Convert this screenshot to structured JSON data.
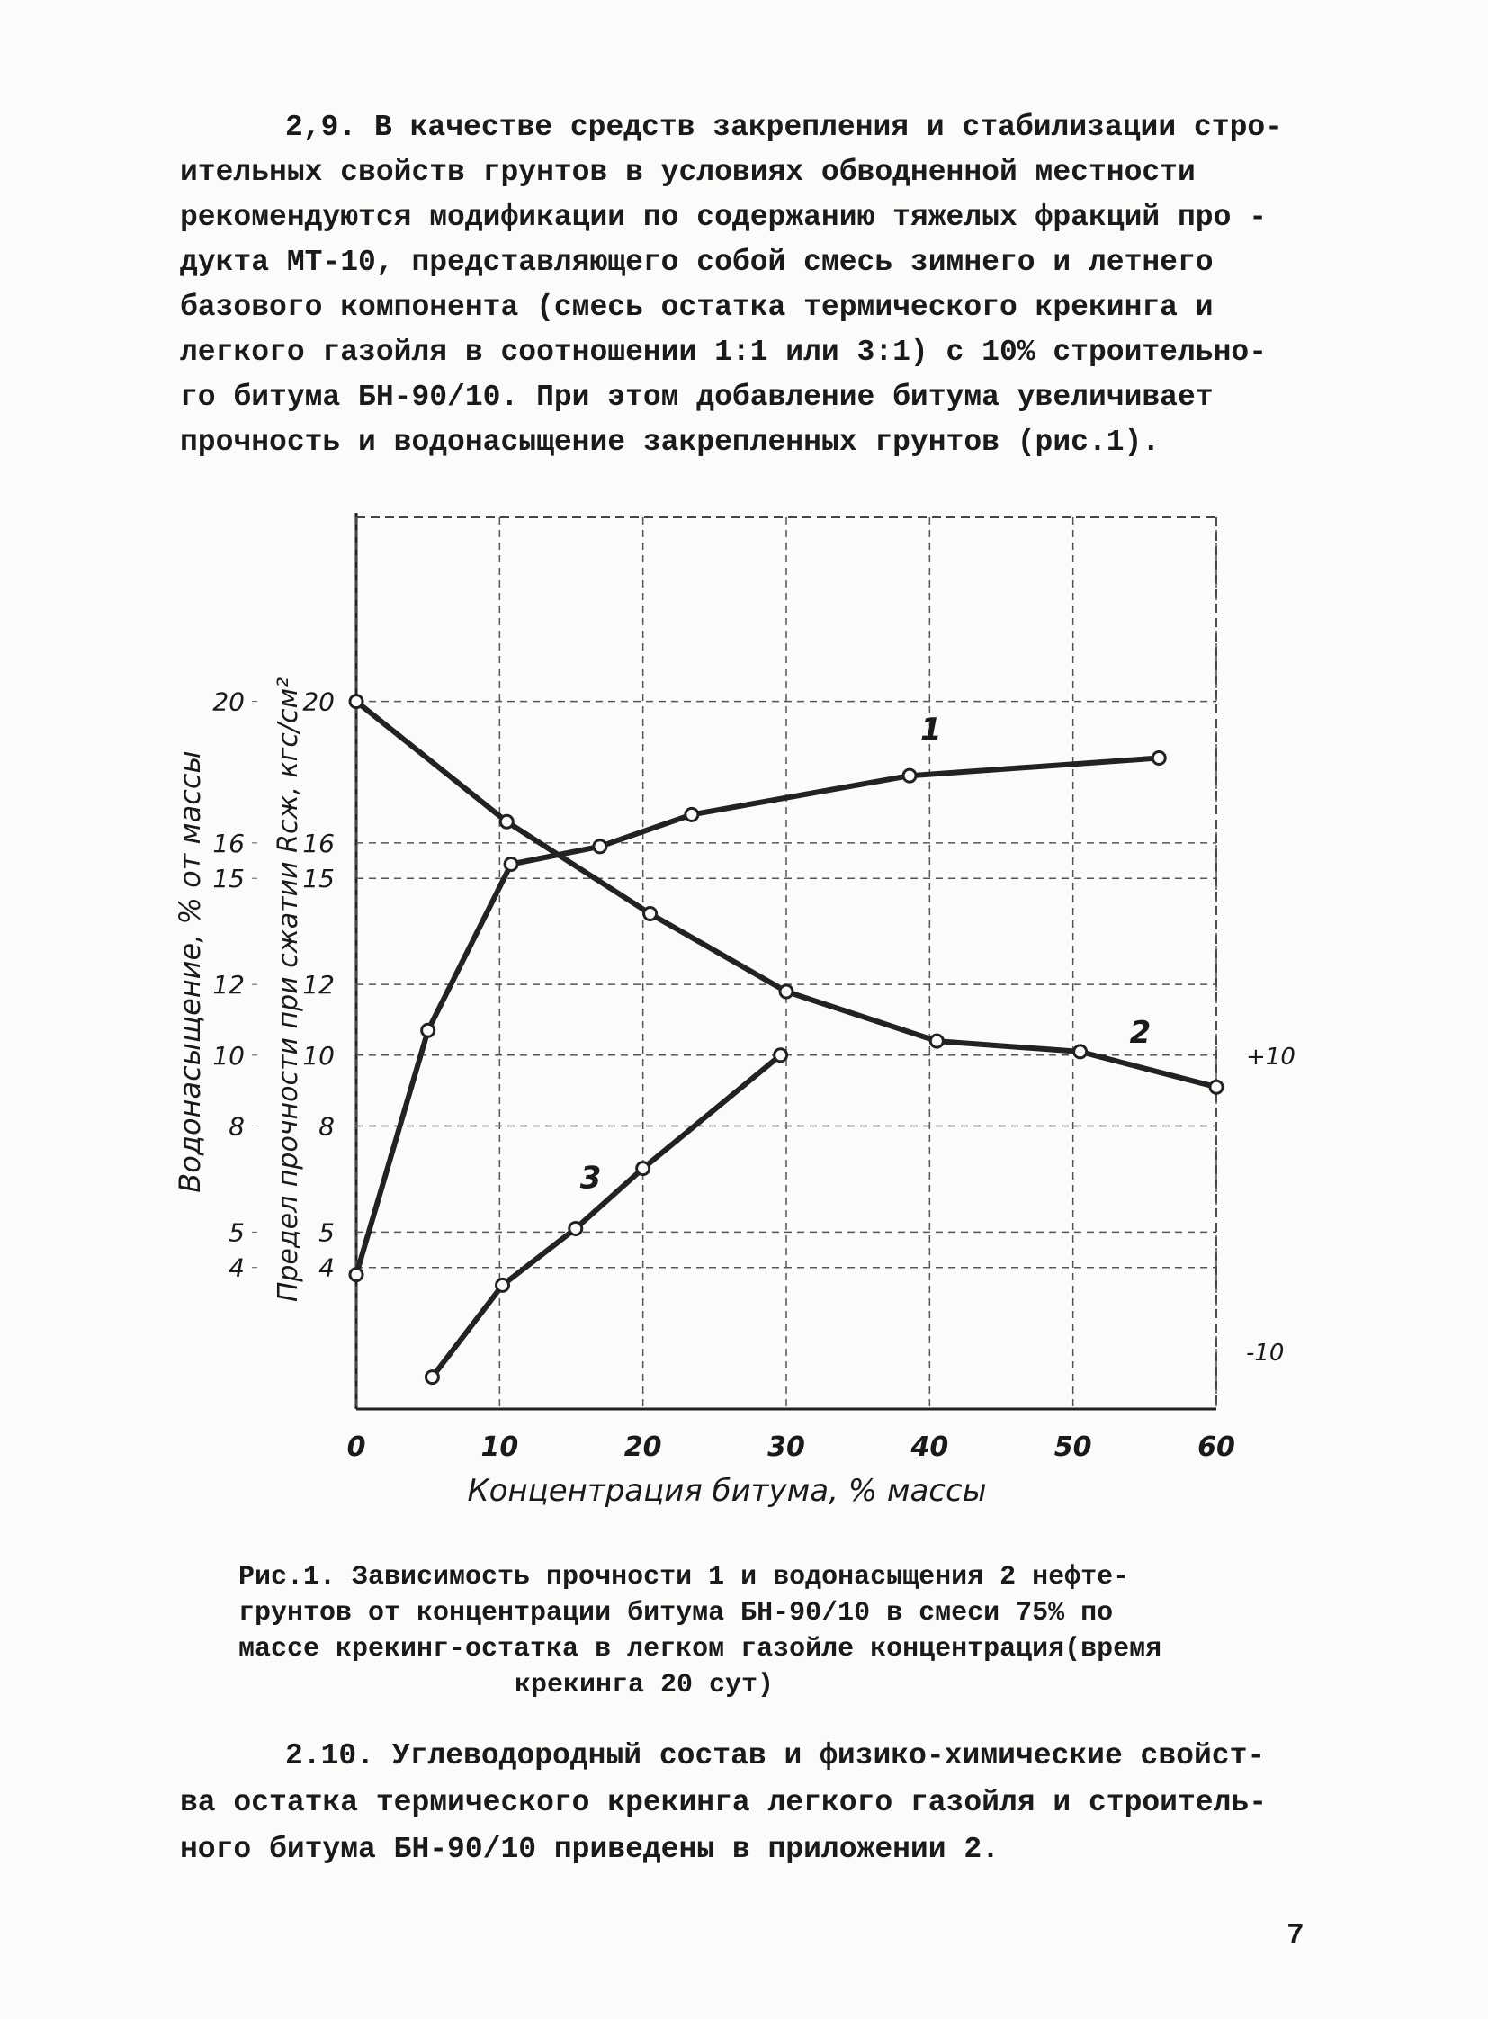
{
  "paragraphs": [
    {
      "lines": [
        "2,9. В качестве средств закрепления и стабилизации стро-",
        "ительных свойств грунтов в условиях обводненной    местности",
        "рекомендуются модификации по содержанию тяжелых фракций про -",
        "дукта МТ-10, представляющего собой смесь зимнего и летнего",
        "базового компонента (смесь остатка термического крекинга   и",
        "легкого газойля в соотношении 1:1 или 3:1) с 10% строительно-",
        "го битума БН-90/10. При этом добавление битума увеличивает",
        "прочность и водонасыщение закрепленных грунтов (рис.1)."
      ]
    },
    {
      "lines": [
        "2.10. Углеводородный состав и физико-химические свойст-",
        "ва остатка термического крекинга легкого газойля и строитель-",
        "ного битума БН-90/10 приведены в приложении 2."
      ]
    }
  ],
  "chart_data": {
    "type": "line",
    "x_label": "Концентрация битума, % массы",
    "y_label": "Предел прочности при сжатии Rсж, кгс/см²",
    "y2_label": "Водонасыщение, % от массы",
    "xlim": [
      0,
      60
    ],
    "xticks": [
      0,
      10,
      20,
      30,
      40,
      50,
      60
    ],
    "ylim": [
      0,
      25
    ],
    "yticks": [
      4,
      5,
      8,
      10,
      12,
      15,
      16,
      20
    ],
    "y2lim": [
      0,
      25
    ],
    "y2ticks": [
      4,
      5,
      8,
      10,
      12,
      15,
      16,
      20
    ],
    "grid": true,
    "side_labels": [
      "+10",
      "-10"
    ],
    "series": [
      {
        "name": "1",
        "color": "#222222",
        "x": [
          0,
          5,
          10.8,
          17,
          23.4,
          38.6,
          56
        ],
        "values": [
          3.8,
          10.7,
          15.4,
          15.9,
          16.8,
          17.9,
          18.4
        ]
      },
      {
        "name": "2",
        "color": "#222222",
        "x": [
          0,
          10.5,
          20.5,
          30,
          40.5,
          50.5,
          60
        ],
        "values": [
          20,
          16.6,
          14,
          11.8,
          10.4,
          10.1,
          9.1
        ]
      },
      {
        "name": "3",
        "color": "#222222",
        "x": [
          5.3,
          10.2,
          15.3,
          20,
          29.6
        ],
        "values": [
          0.9,
          3.5,
          5.1,
          6.8,
          10
        ],
        "axis": "y2"
      }
    ]
  },
  "caption": {
    "lines": [
      "Рис.1. Зависимость прочности 1 и водонасыщения 2 нефте-",
      "грунтов от концентрации битума БН-90/10 в смеси  75% по",
      "массе крекинг-остатка в легком газойле концентрация(время",
      "крекинга 20 сут)"
    ]
  },
  "page_number": "7"
}
